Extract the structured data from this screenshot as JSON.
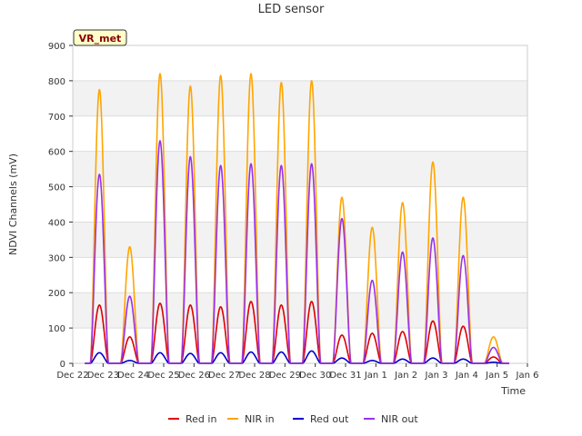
{
  "chart_data": {
    "type": "line",
    "title": "LED sensor",
    "xlabel": "Time",
    "ylabel": "NDVI Channels (mV)",
    "ylim": [
      0,
      900
    ],
    "xlim": [
      0,
      15
    ],
    "yticks": [
      0,
      100,
      200,
      300,
      400,
      500,
      600,
      700,
      800,
      900
    ],
    "xticks": [
      {
        "label": "Dec 22",
        "x": 0
      },
      {
        "label": "Dec 23",
        "x": 1
      },
      {
        "label": "Dec 24",
        "x": 2
      },
      {
        "label": "Dec 25",
        "x": 3
      },
      {
        "label": "Dec 26",
        "x": 4
      },
      {
        "label": "Dec 27",
        "x": 5
      },
      {
        "label": "Dec 28",
        "x": 6
      },
      {
        "label": "Dec 29",
        "x": 7
      },
      {
        "label": "Dec 30",
        "x": 8
      },
      {
        "label": "Dec 31",
        "x": 9
      },
      {
        "label": "Jan 1",
        "x": 10
      },
      {
        "label": "Jan 2",
        "x": 11
      },
      {
        "label": "Jan 3",
        "x": 12
      },
      {
        "label": "Jan 4",
        "x": 13
      },
      {
        "label": "Jan 5",
        "x": 14
      },
      {
        "label": "Jan 6",
        "x": 15
      }
    ],
    "annotation": "VR_met",
    "grid": true,
    "legend_position": "bottom",
    "x_data_range": [
      0.4,
      14.4
    ],
    "daily_peak_x": [
      0.88,
      1.88,
      2.88,
      3.88,
      4.88,
      5.88,
      6.88,
      7.88,
      8.88,
      9.88,
      10.88,
      11.88,
      12.88,
      13.88
    ],
    "series": [
      {
        "name": "Red in",
        "color": "#dd0000",
        "daily_peaks": [
          165,
          75,
          170,
          165,
          160,
          175,
          165,
          175,
          80,
          85,
          90,
          120,
          105,
          18
        ]
      },
      {
        "name": "NIR in",
        "color": "#ffa500",
        "daily_peaks": [
          775,
          330,
          820,
          785,
          815,
          820,
          795,
          800,
          470,
          385,
          455,
          570,
          470,
          75
        ]
      },
      {
        "name": "Red out",
        "color": "#0000cc",
        "daily_peaks": [
          30,
          8,
          30,
          28,
          30,
          32,
          32,
          35,
          15,
          8,
          12,
          15,
          12,
          3
        ]
      },
      {
        "name": "NIR out",
        "color": "#9a32e6",
        "daily_peaks": [
          535,
          190,
          630,
          585,
          560,
          565,
          560,
          565,
          410,
          235,
          315,
          355,
          305,
          45
        ]
      }
    ]
  }
}
